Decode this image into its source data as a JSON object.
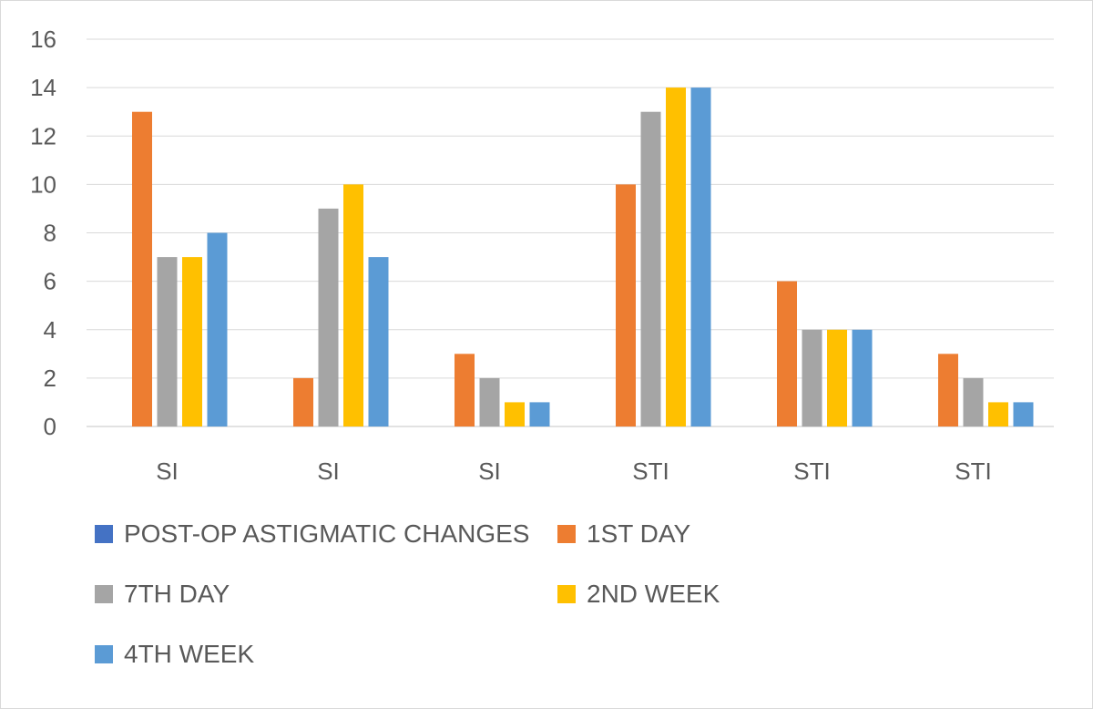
{
  "chart_data": {
    "type": "bar",
    "categories": [
      "SI",
      "SI",
      "SI",
      "STI",
      "STI",
      "STI"
    ],
    "series": [
      {
        "name": "POST-OP ASTIGMATIC CHANGES",
        "color": "#4472c4",
        "values": [
          0,
          0,
          0,
          0,
          0,
          0
        ]
      },
      {
        "name": "1ST DAY",
        "color": "#ed7d31",
        "values": [
          13,
          2,
          3,
          10,
          6,
          3
        ]
      },
      {
        "name": "7TH DAY",
        "color": "#a5a5a5",
        "values": [
          7,
          9,
          2,
          13,
          4,
          2
        ]
      },
      {
        "name": "2ND WEEK",
        "color": "#ffc000",
        "values": [
          7,
          10,
          1,
          14,
          4,
          1
        ]
      },
      {
        "name": "4TH WEEK",
        "color": "#5b9bd5",
        "values": [
          8,
          7,
          1,
          14,
          4,
          1
        ]
      }
    ],
    "y_ticks": [
      "0",
      "2",
      "4",
      "6",
      "8",
      "10",
      "12",
      "14",
      "16"
    ],
    "ylim": [
      0,
      16
    ],
    "grid": true,
    "legend_position": "bottom",
    "title": "",
    "xlabel": "",
    "ylabel": ""
  }
}
